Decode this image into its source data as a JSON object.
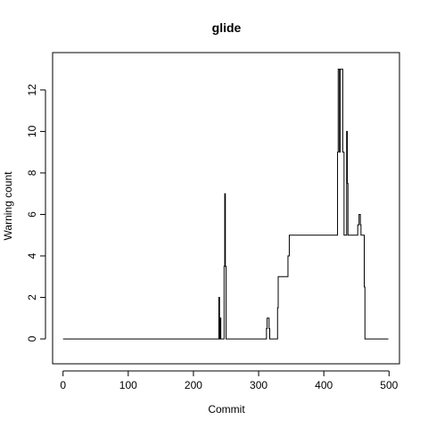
{
  "chart_data": {
    "type": "line",
    "title": "glide",
    "xlabel": "Commit",
    "ylabel": "Warning count",
    "xlim": [
      -16,
      516
    ],
    "ylim": [
      -1.2,
      13.8
    ],
    "xticks": [
      0,
      100,
      200,
      300,
      400,
      500
    ],
    "yticks": [
      0,
      2,
      4,
      6,
      8,
      10,
      12
    ],
    "grid": false,
    "step": true,
    "line_color": "#000000",
    "series": [
      {
        "points": [
          [
            0,
            0
          ],
          [
            239,
            0
          ],
          [
            239,
            2
          ],
          [
            240,
            2
          ],
          [
            240,
            0
          ],
          [
            241,
            0
          ],
          [
            241,
            1
          ],
          [
            242,
            1
          ],
          [
            242,
            0
          ],
          [
            247,
            0
          ],
          [
            247,
            3.5
          ],
          [
            248,
            3.5
          ],
          [
            248,
            7
          ],
          [
            249,
            7
          ],
          [
            249,
            3.5
          ],
          [
            250,
            3.5
          ],
          [
            250,
            0
          ],
          [
            312,
            0
          ],
          [
            312,
            0.5
          ],
          [
            313,
            0.5
          ],
          [
            313,
            1
          ],
          [
            316,
            1
          ],
          [
            316,
            0.5
          ],
          [
            317,
            0.5
          ],
          [
            317,
            0
          ],
          [
            329,
            0
          ],
          [
            329,
            1.5
          ],
          [
            330,
            1.5
          ],
          [
            330,
            3
          ],
          [
            345,
            3
          ],
          [
            345,
            4
          ],
          [
            347,
            4
          ],
          [
            347,
            5
          ],
          [
            421,
            5
          ],
          [
            421,
            9
          ],
          [
            422,
            9
          ],
          [
            422,
            13
          ],
          [
            424,
            13
          ],
          [
            424,
            9
          ],
          [
            425,
            9
          ],
          [
            425,
            13
          ],
          [
            429,
            13
          ],
          [
            429,
            9
          ],
          [
            431,
            9
          ],
          [
            431,
            5
          ],
          [
            435,
            5
          ],
          [
            435,
            10
          ],
          [
            436,
            10
          ],
          [
            436,
            7.5
          ],
          [
            437,
            7.5
          ],
          [
            437,
            5
          ],
          [
            452,
            5
          ],
          [
            452,
            5.5
          ],
          [
            454,
            5.5
          ],
          [
            454,
            6
          ],
          [
            456,
            6
          ],
          [
            456,
            5.5
          ],
          [
            457,
            5.5
          ],
          [
            457,
            5
          ],
          [
            462,
            5
          ],
          [
            462,
            2.5
          ],
          [
            463,
            2.5
          ],
          [
            463,
            0
          ],
          [
            499,
            0
          ]
        ]
      }
    ]
  }
}
